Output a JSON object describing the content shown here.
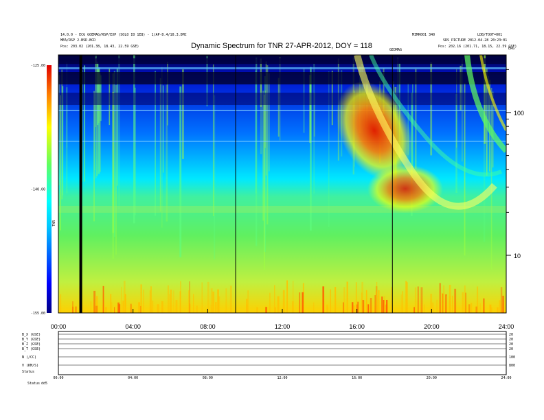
{
  "header": {
    "title": "Dynamic Spectrum for TNR 27-APR-2012, DOY = 118",
    "left_line1": "14.0.0 - ECG GOEMAG/RSP/EXP (SOLO IO 1E8) - 1/AP-D.4/10.3.DMC",
    "left_line2": "MEA/RSP 2-BSD-BCD",
    "left_line3": "Pos: 203.02 (201.38, 18.43, 22.59 GSE)",
    "right_line1": "MIMR001 340",
    "right_line2": "LDB/TOOT=001",
    "right_line3": "SRS_PICTURE 2012-04-28 20:23:01",
    "right_line4": "Pos: 202.16 (201.71, 18.15, 22.59 GSE)",
    "top_right_mark": "ERG",
    "shock_label": "GEOMAG"
  },
  "chart_data": {
    "type": "heatmap",
    "title": "Dynamic Spectrum for TNR 27-APR-2012, DOY = 118",
    "x_ticks": [
      "00:00",
      "04:00",
      "08:00",
      "12:00",
      "16:00",
      "20:00",
      "24:00"
    ],
    "x_range_hours": [
      0,
      24
    ],
    "y_scale": "log",
    "y_ticks": [
      "10",
      "100"
    ],
    "colorbar": {
      "ticks": [
        "-125.00",
        "-140.00",
        "-155.00"
      ],
      "range": [
        -155,
        -125
      ],
      "label": "TNR",
      "colors": [
        "#000080",
        "#0000ff",
        "#00c8ff",
        "#00ffff",
        "#60ff60",
        "#ffff00",
        "#ff8000",
        "#e00000"
      ]
    },
    "vertical_markers_hours": [
      1.2,
      9.5,
      17.9
    ],
    "features": {
      "background_level": -141,
      "type3_burst_hour": 16.5,
      "type3_burst_level": -127
    }
  },
  "bottom_panel": {
    "row_labels": [
      "B_X (GSE)",
      "B_Y (GSE)",
      "B_Z (GSE)",
      "B_T (GSE)",
      "N (/CC)",
      "V (KM/S)",
      "Status"
    ],
    "right_values": [
      "20",
      "20",
      "20",
      "20",
      "100",
      "800",
      ""
    ],
    "x_ticks": [
      "00:00",
      "04:00",
      "08:00",
      "12:00",
      "16:00",
      "20:00",
      "24:00"
    ],
    "status_label": "Status",
    "status_value": "dd5"
  }
}
